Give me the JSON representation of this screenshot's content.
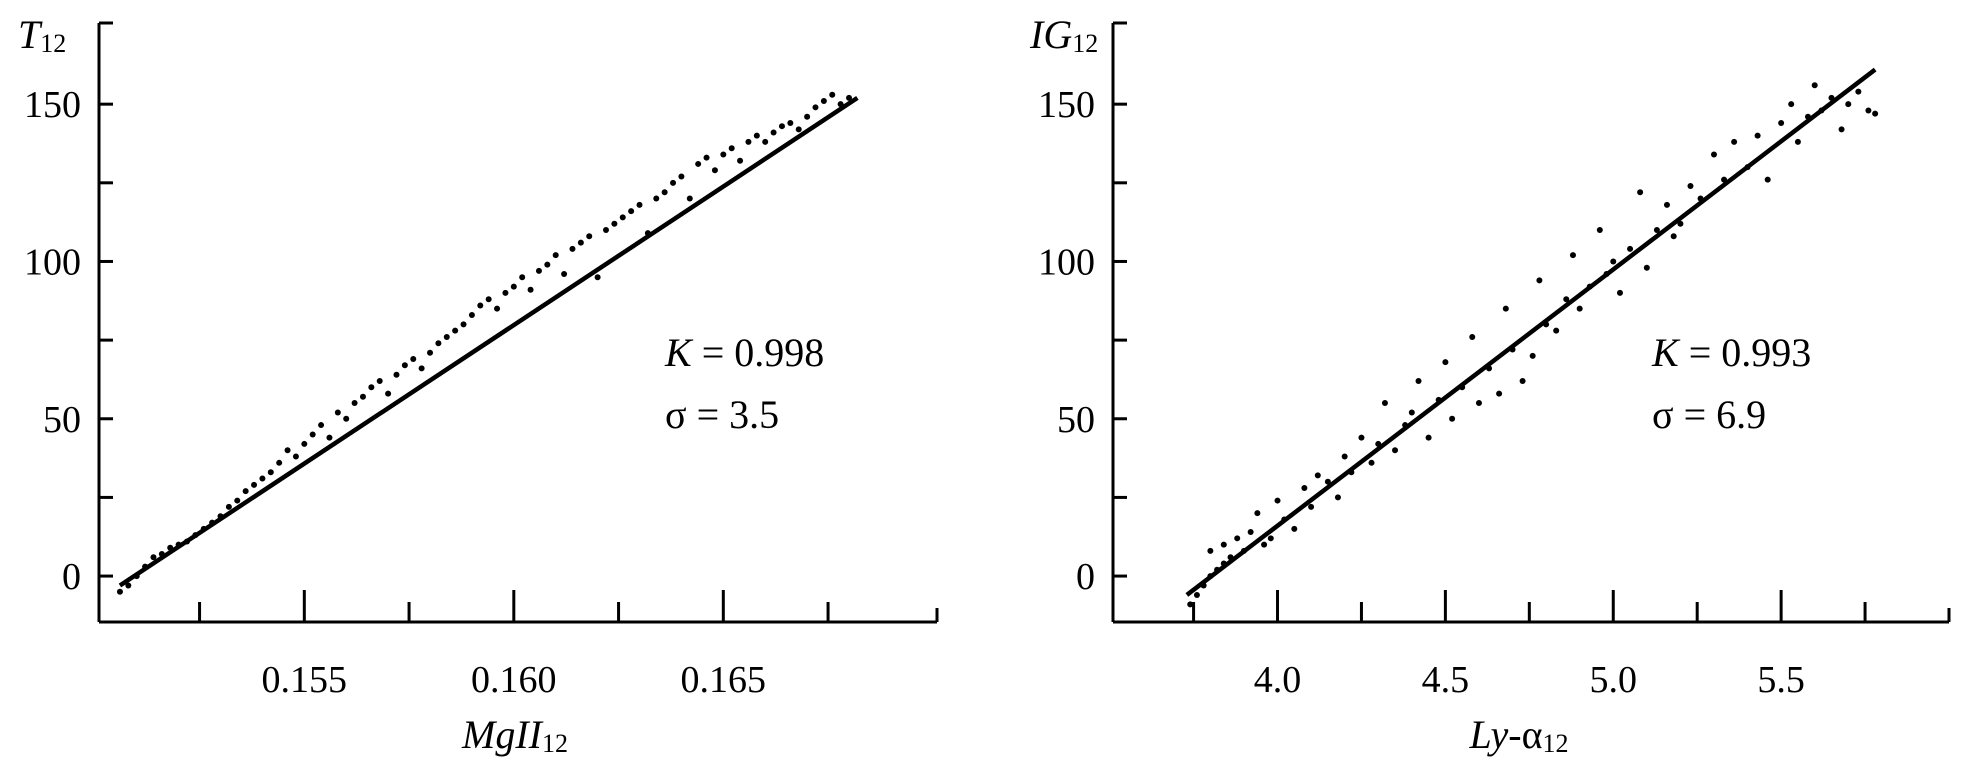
{
  "chart_data": [
    {
      "type": "scatter",
      "ylabel_main": "T",
      "ylabel_sub": "12",
      "xlabel_main": "MgII",
      "xlabel_sub": "12",
      "xlim": [
        0.1501,
        0.1701
      ],
      "ylim": [
        -14.6,
        175.8
      ],
      "xticks": [
        0.155,
        0.16,
        0.165
      ],
      "xtick_labels": [
        "0.155",
        "0.160",
        "0.165"
      ],
      "xminor": [
        0.1525,
        0.1575,
        0.1625,
        0.1675
      ],
      "yticks": [
        0,
        50,
        100,
        150
      ],
      "ytick_labels": [
        "0",
        "50",
        "100",
        "150"
      ],
      "yminor": [
        25,
        75,
        125
      ],
      "annotation": {
        "k_label": "K",
        "k_value": " = 0.998",
        "sigma": "σ = 3.5"
      },
      "fit_line": [
        [
          0.1506,
          -3
        ],
        [
          0.1682,
          152
        ]
      ],
      "grid": false,
      "points": [
        [
          0.1506,
          -5
        ],
        [
          0.1508,
          -3
        ],
        [
          0.151,
          0
        ],
        [
          0.1512,
          3
        ],
        [
          0.1514,
          6
        ],
        [
          0.1516,
          7
        ],
        [
          0.1518,
          9
        ],
        [
          0.152,
          10
        ],
        [
          0.1522,
          11
        ],
        [
          0.1524,
          13
        ],
        [
          0.1526,
          15
        ],
        [
          0.1528,
          17
        ],
        [
          0.153,
          19
        ],
        [
          0.1532,
          22
        ],
        [
          0.1534,
          24
        ],
        [
          0.1536,
          27
        ],
        [
          0.1538,
          29
        ],
        [
          0.154,
          31
        ],
        [
          0.1542,
          33
        ],
        [
          0.1544,
          36
        ],
        [
          0.1546,
          40
        ],
        [
          0.1548,
          38
        ],
        [
          0.155,
          42
        ],
        [
          0.1552,
          45
        ],
        [
          0.1554,
          48
        ],
        [
          0.1556,
          44
        ],
        [
          0.1558,
          52
        ],
        [
          0.156,
          50
        ],
        [
          0.1562,
          55
        ],
        [
          0.1564,
          57
        ],
        [
          0.1566,
          60
        ],
        [
          0.1568,
          62
        ],
        [
          0.157,
          58
        ],
        [
          0.1572,
          64
        ],
        [
          0.1574,
          67
        ],
        [
          0.1576,
          69
        ],
        [
          0.1578,
          66
        ],
        [
          0.158,
          71
        ],
        [
          0.1582,
          74
        ],
        [
          0.1584,
          76
        ],
        [
          0.1586,
          78
        ],
        [
          0.1588,
          80
        ],
        [
          0.159,
          83
        ],
        [
          0.1592,
          86
        ],
        [
          0.1594,
          88
        ],
        [
          0.1596,
          85
        ],
        [
          0.1598,
          90
        ],
        [
          0.16,
          92
        ],
        [
          0.1602,
          95
        ],
        [
          0.1604,
          91
        ],
        [
          0.1606,
          97
        ],
        [
          0.1608,
          99
        ],
        [
          0.161,
          102
        ],
        [
          0.1612,
          96
        ],
        [
          0.1614,
          104
        ],
        [
          0.1616,
          106
        ],
        [
          0.1618,
          108
        ],
        [
          0.162,
          95
        ],
        [
          0.1622,
          110
        ],
        [
          0.1624,
          112
        ],
        [
          0.1626,
          114
        ],
        [
          0.1628,
          116
        ],
        [
          0.163,
          118
        ],
        [
          0.1632,
          109
        ],
        [
          0.1634,
          120
        ],
        [
          0.1636,
          122
        ],
        [
          0.1638,
          125
        ],
        [
          0.164,
          127
        ],
        [
          0.1642,
          120
        ],
        [
          0.1644,
          131
        ],
        [
          0.1646,
          133
        ],
        [
          0.1648,
          129
        ],
        [
          0.165,
          134
        ],
        [
          0.1652,
          136
        ],
        [
          0.1654,
          132
        ],
        [
          0.1656,
          138
        ],
        [
          0.1658,
          140
        ],
        [
          0.166,
          138
        ],
        [
          0.1662,
          141
        ],
        [
          0.1664,
          143
        ],
        [
          0.1666,
          144
        ],
        [
          0.1668,
          142
        ],
        [
          0.167,
          146
        ],
        [
          0.1672,
          149
        ],
        [
          0.1674,
          151
        ],
        [
          0.1676,
          153
        ],
        [
          0.1678,
          150
        ],
        [
          0.168,
          152
        ]
      ]
    },
    {
      "type": "scatter",
      "ylabel_main": "IG",
      "ylabel_sub": "12",
      "xlabel_main": "Ly",
      "xlabel_mid": "-α",
      "xlabel_sub": "12",
      "xlim": [
        3.51,
        6.0
      ],
      "ylim": [
        -14.6,
        175.8
      ],
      "xticks": [
        4.0,
        4.5,
        5.0,
        5.5
      ],
      "xtick_labels": [
        "4.0",
        "4.5",
        "5.0",
        "5.5"
      ],
      "xminor": [
        3.75,
        4.25,
        4.75,
        5.25,
        5.75
      ],
      "yticks": [
        0,
        50,
        100,
        150
      ],
      "ytick_labels": [
        "0",
        "50",
        "100",
        "150"
      ],
      "yminor": [
        25,
        75,
        125
      ],
      "annotation": {
        "k_label": "K",
        "k_value": " = 0.993",
        "sigma": "σ = 6.9"
      },
      "fit_line": [
        [
          3.73,
          -6
        ],
        [
          5.78,
          161
        ]
      ],
      "grid": false,
      "points": [
        [
          3.74,
          -9
        ],
        [
          3.76,
          -6
        ],
        [
          3.78,
          -3
        ],
        [
          3.8,
          0
        ],
        [
          3.82,
          2
        ],
        [
          3.84,
          4
        ],
        [
          3.8,
          8
        ],
        [
          3.84,
          10
        ],
        [
          3.86,
          6
        ],
        [
          3.88,
          12
        ],
        [
          3.9,
          8
        ],
        [
          3.92,
          14
        ],
        [
          3.94,
          20
        ],
        [
          3.96,
          10
        ],
        [
          3.98,
          12
        ],
        [
          4.0,
          24
        ],
        [
          4.02,
          18
        ],
        [
          4.05,
          15
        ],
        [
          4.08,
          28
        ],
        [
          4.1,
          22
        ],
        [
          4.12,
          32
        ],
        [
          4.15,
          30
        ],
        [
          4.18,
          25
        ],
        [
          4.2,
          38
        ],
        [
          4.22,
          33
        ],
        [
          4.25,
          44
        ],
        [
          4.28,
          36
        ],
        [
          4.3,
          42
        ],
        [
          4.32,
          55
        ],
        [
          4.35,
          40
        ],
        [
          4.38,
          48
        ],
        [
          4.4,
          52
        ],
        [
          4.42,
          62
        ],
        [
          4.45,
          44
        ],
        [
          4.48,
          56
        ],
        [
          4.5,
          68
        ],
        [
          4.52,
          50
        ],
        [
          4.55,
          60
        ],
        [
          4.58,
          76
        ],
        [
          4.6,
          55
        ],
        [
          4.63,
          66
        ],
        [
          4.66,
          58
        ],
        [
          4.68,
          85
        ],
        [
          4.7,
          72
        ],
        [
          4.73,
          62
        ],
        [
          4.76,
          70
        ],
        [
          4.78,
          94
        ],
        [
          4.8,
          80
        ],
        [
          4.83,
          78
        ],
        [
          4.86,
          88
        ],
        [
          4.88,
          102
        ],
        [
          4.9,
          85
        ],
        [
          4.93,
          92
        ],
        [
          4.96,
          110
        ],
        [
          4.98,
          96
        ],
        [
          5.0,
          100
        ],
        [
          5.02,
          90
        ],
        [
          5.05,
          104
        ],
        [
          5.08,
          122
        ],
        [
          5.1,
          98
        ],
        [
          5.13,
          110
        ],
        [
          5.16,
          118
        ],
        [
          5.18,
          108
        ],
        [
          5.2,
          112
        ],
        [
          5.23,
          124
        ],
        [
          5.26,
          120
        ],
        [
          5.3,
          134
        ],
        [
          5.33,
          126
        ],
        [
          5.36,
          138
        ],
        [
          5.4,
          130
        ],
        [
          5.43,
          140
        ],
        [
          5.46,
          126
        ],
        [
          5.5,
          144
        ],
        [
          5.53,
          150
        ],
        [
          5.55,
          138
        ],
        [
          5.58,
          146
        ],
        [
          5.6,
          156
        ],
        [
          5.62,
          148
        ],
        [
          5.65,
          152
        ],
        [
          5.68,
          142
        ],
        [
          5.7,
          150
        ],
        [
          5.73,
          154
        ],
        [
          5.76,
          148
        ],
        [
          5.78,
          147
        ]
      ]
    }
  ]
}
